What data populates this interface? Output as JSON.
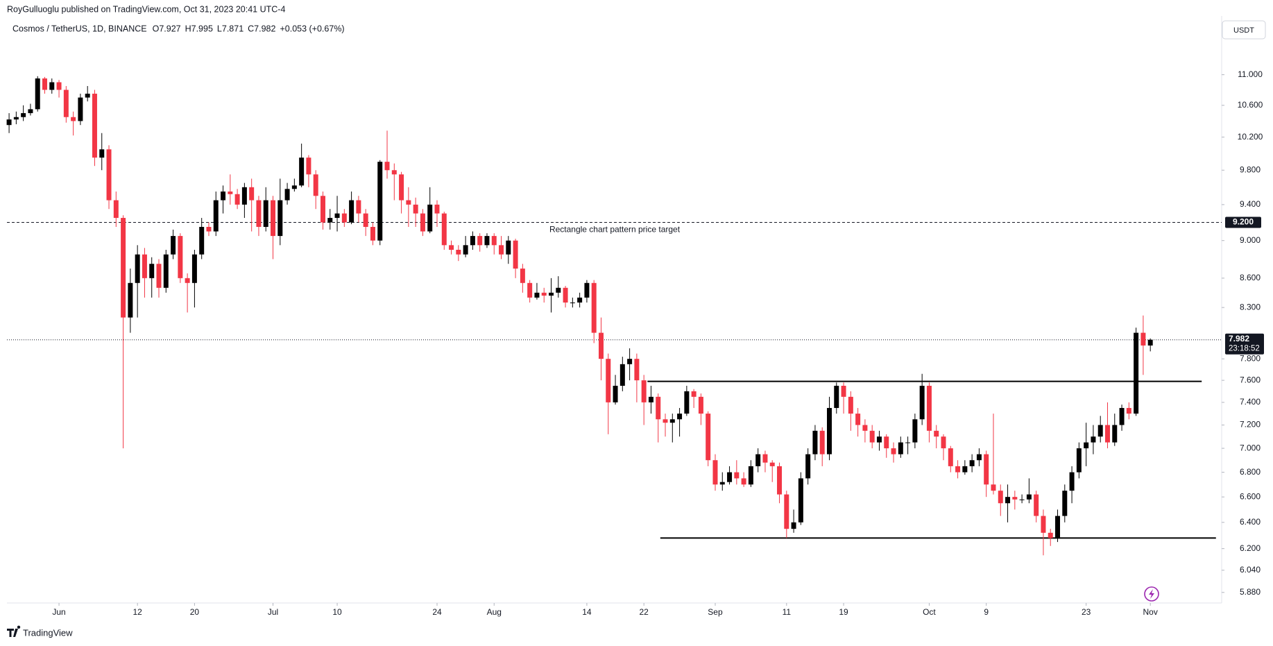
{
  "header": {
    "publisher": "RoyGulluoglu published on TradingView.com, Oct 31, 2023 20:41 UTC-4",
    "symbol": "Cosmos / TetherUS, 1D, BINANCE",
    "legend": [
      "O7.927",
      "H7.995",
      "L7.871",
      "C7.982",
      "+0.053 (+0.67%)"
    ],
    "currency": "USDT",
    "brand": "TradingView"
  },
  "chart_data": {
    "type": "candlestick",
    "log_scale": true,
    "grid": false,
    "up_color": "#000000",
    "down_color": "#f23645",
    "xlim": [
      -0.3,
      170
    ],
    "ylim": [
      5.82,
      11.81
    ],
    "xticks": [
      {
        "value": 7,
        "label": "Jun"
      },
      {
        "value": 18,
        "label": "12"
      },
      {
        "value": 26,
        "label": "20"
      },
      {
        "value": 37,
        "label": "Jul"
      },
      {
        "value": 46,
        "label": "10"
      },
      {
        "value": 60,
        "label": "24"
      },
      {
        "value": 68,
        "label": "Aug"
      },
      {
        "value": 81,
        "label": "14"
      },
      {
        "value": 89,
        "label": "22"
      },
      {
        "value": 99,
        "label": "Sep"
      },
      {
        "value": 109,
        "label": "11"
      },
      {
        "value": 117,
        "label": "19"
      },
      {
        "value": 129,
        "label": "Oct"
      },
      {
        "value": 137,
        "label": "9"
      },
      {
        "value": 151,
        "label": "23"
      },
      {
        "value": 160,
        "label": "Nov"
      }
    ],
    "yticks": [
      {
        "value": 11,
        "label": "11.000"
      },
      {
        "value": 10.6,
        "label": "10.600"
      },
      {
        "value": 10.2,
        "label": "10.200"
      },
      {
        "value": 9.8,
        "label": "9.800"
      },
      {
        "value": 9.4,
        "label": "9.400"
      },
      {
        "value": 9,
        "label": "9.000"
      },
      {
        "value": 8.6,
        "label": "8.600"
      },
      {
        "value": 8.3,
        "label": "8.300"
      },
      {
        "value": 7.8,
        "label": "7.800"
      },
      {
        "value": 7.6,
        "label": "7.600"
      },
      {
        "value": 7.4,
        "label": "7.400"
      },
      {
        "value": 7.2,
        "label": "7.200"
      },
      {
        "value": 7,
        "label": "7.000"
      },
      {
        "value": 6.8,
        "label": "6.800"
      },
      {
        "value": 6.6,
        "label": "6.600"
      },
      {
        "value": 6.4,
        "label": "6.400"
      },
      {
        "value": 6.2,
        "label": "6.200"
      },
      {
        "value": 6.04,
        "label": "6.040"
      },
      {
        "value": 5.88,
        "label": "5.880"
      }
    ],
    "open": [
      10.35,
      10.42,
      10.45,
      10.5,
      10.55,
      10.95,
      10.8,
      10.9,
      10.8,
      10.45,
      10.4,
      10.7,
      10.75,
      9.95,
      10.05,
      9.45,
      9.25,
      8.2,
      8.55,
      8.85,
      8.6,
      8.75,
      8.5,
      8.85,
      9.05,
      8.6,
      8.55,
      8.85,
      9.15,
      9.1,
      9.45,
      9.55,
      9.52,
      9.4,
      9.6,
      9.45,
      9.15,
      9.45,
      9.05,
      9.45,
      9.58,
      9.62,
      9.95,
      9.75,
      9.5,
      9.2,
      9.25,
      9.3,
      9.2,
      9.45,
      9.3,
      9.15,
      9.0,
      9.9,
      9.8,
      9.75,
      9.45,
      9.4,
      9.3,
      9.1,
      9.4,
      9.3,
      8.95,
      8.9,
      8.85,
      8.95,
      9.05,
      8.95,
      9.05,
      8.95,
      8.85,
      9.0,
      8.7,
      8.55,
      8.4,
      8.45,
      8.42,
      8.45,
      8.5,
      8.35,
      8.35,
      8.4,
      8.55,
      8.05,
      7.8,
      7.4,
      7.55,
      7.75,
      7.8,
      7.6,
      7.4,
      7.45,
      7.25,
      7.22,
      7.25,
      7.3,
      7.5,
      7.45,
      7.3,
      6.9,
      6.7,
      6.72,
      6.8,
      6.75,
      6.7,
      6.85,
      6.95,
      6.88,
      6.85,
      6.62,
      6.35,
      6.4,
      6.75,
      6.95,
      7.15,
      6.95,
      7.35,
      7.55,
      7.45,
      7.3,
      7.2,
      7.15,
      7.05,
      7.1,
      7.0,
      6.95,
      7.05,
      7.05,
      7.25,
      7.55,
      7.15,
      7.1,
      7.0,
      6.85,
      6.8,
      6.85,
      6.9,
      6.95,
      6.7,
      6.65,
      6.55,
      6.6,
      6.58,
      6.58,
      6.62,
      6.45,
      6.32,
      6.28,
      6.45,
      6.65,
      6.8,
      7.0,
      7.05,
      7.1,
      7.2,
      7.05,
      7.2,
      7.35,
      7.3,
      8.05,
      7.927
    ],
    "high": [
      10.5,
      10.52,
      10.6,
      10.62,
      10.98,
      10.97,
      10.95,
      10.93,
      10.85,
      10.52,
      10.75,
      10.85,
      10.8,
      10.25,
      10.1,
      9.55,
      9.28,
      8.7,
      8.95,
      8.92,
      8.82,
      8.8,
      8.9,
      9.12,
      9.08,
      8.65,
      8.9,
      9.25,
      9.2,
      9.55,
      9.62,
      9.75,
      9.58,
      9.65,
      9.7,
      9.5,
      9.6,
      9.5,
      9.7,
      9.65,
      9.7,
      10.12,
      9.98,
      9.8,
      9.55,
      9.35,
      9.5,
      9.35,
      9.55,
      9.5,
      9.35,
      9.2,
      9.92,
      10.28,
      9.88,
      9.78,
      9.6,
      9.48,
      9.35,
      9.6,
      9.45,
      9.32,
      9.0,
      8.95,
      9.05,
      9.1,
      9.08,
      9.08,
      9.08,
      9.05,
      9.05,
      9.02,
      8.75,
      8.58,
      8.55,
      8.5,
      8.6,
      8.62,
      8.52,
      8.4,
      8.45,
      8.58,
      8.58,
      8.2,
      7.85,
      7.65,
      7.82,
      7.9,
      7.85,
      7.65,
      7.55,
      7.48,
      7.3,
      7.3,
      7.35,
      7.55,
      7.52,
      7.48,
      7.32,
      6.95,
      6.8,
      6.85,
      6.9,
      6.8,
      6.9,
      7.0,
      6.98,
      6.9,
      6.88,
      6.65,
      6.5,
      6.8,
      7.0,
      7.2,
      7.18,
      7.45,
      7.58,
      7.58,
      7.5,
      7.35,
      7.25,
      7.2,
      7.15,
      7.12,
      7.05,
      7.1,
      7.1,
      7.3,
      7.66,
      7.58,
      7.2,
      7.12,
      7.02,
      6.9,
      6.9,
      6.95,
      7.0,
      6.98,
      7.3,
      6.7,
      6.7,
      6.65,
      6.62,
      6.75,
      6.65,
      6.5,
      6.35,
      6.5,
      6.7,
      6.85,
      7.05,
      7.22,
      7.2,
      7.28,
      7.4,
      7.3,
      7.38,
      7.4,
      8.1,
      8.22,
      7.995
    ],
    "low": [
      10.25,
      10.36,
      10.4,
      10.47,
      10.52,
      10.75,
      10.75,
      10.7,
      10.38,
      10.22,
      10.35,
      10.65,
      9.85,
      9.8,
      9.35,
      9.15,
      7.0,
      8.05,
      8.2,
      8.4,
      8.4,
      8.4,
      8.45,
      8.8,
      8.55,
      8.25,
      8.3,
      8.8,
      9.05,
      9.05,
      9.3,
      9.4,
      9.35,
      9.25,
      9.1,
      9.05,
      9.1,
      8.8,
      8.95,
      9.4,
      9.55,
      9.6,
      9.6,
      9.35,
      9.12,
      9.12,
      9.1,
      9.15,
      9.18,
      9.2,
      9.05,
      8.95,
      8.95,
      9.7,
      9.45,
      9.3,
      9.15,
      9.15,
      9.05,
      9.08,
      9.15,
      8.9,
      8.85,
      8.78,
      8.82,
      8.9,
      8.88,
      8.92,
      8.85,
      8.8,
      8.75,
      8.6,
      8.45,
      8.35,
      8.38,
      8.35,
      8.25,
      8.4,
      8.3,
      8.3,
      8.3,
      8.35,
      7.95,
      7.6,
      7.12,
      7.38,
      7.5,
      7.6,
      7.4,
      7.2,
      7.3,
      7.05,
      7.1,
      7.05,
      7.1,
      7.28,
      7.35,
      7.2,
      6.85,
      6.65,
      6.65,
      6.7,
      6.7,
      6.68,
      6.68,
      6.8,
      6.8,
      6.72,
      6.55,
      6.28,
      6.32,
      6.38,
      6.7,
      6.9,
      6.85,
      6.9,
      7.3,
      7.3,
      7.15,
      7.1,
      7.05,
      7.0,
      6.98,
      6.92,
      6.88,
      6.92,
      6.95,
      7.0,
      7.2,
      7.05,
      7.0,
      6.9,
      6.8,
      6.75,
      6.78,
      6.8,
      6.85,
      6.6,
      6.62,
      6.45,
      6.4,
      6.5,
      6.55,
      6.55,
      6.4,
      6.15,
      6.22,
      6.25,
      6.4,
      6.55,
      6.75,
      6.85,
      6.95,
      7.05,
      7.0,
      7.02,
      7.15,
      7.25,
      7.28,
      7.65,
      7.871
    ],
    "close": [
      10.42,
      10.45,
      10.5,
      10.55,
      10.95,
      10.8,
      10.9,
      10.8,
      10.45,
      10.4,
      10.7,
      10.75,
      9.95,
      10.05,
      9.45,
      9.25,
      8.2,
      8.55,
      8.85,
      8.6,
      8.75,
      8.5,
      8.85,
      9.05,
      8.6,
      8.55,
      8.85,
      9.15,
      9.1,
      9.45,
      9.55,
      9.52,
      9.4,
      9.6,
      9.45,
      9.15,
      9.45,
      9.05,
      9.45,
      9.58,
      9.62,
      9.95,
      9.75,
      9.5,
      9.2,
      9.25,
      9.3,
      9.2,
      9.45,
      9.3,
      9.15,
      9.0,
      9.9,
      9.8,
      9.75,
      9.45,
      9.4,
      9.3,
      9.1,
      9.4,
      9.3,
      8.95,
      8.9,
      8.85,
      8.95,
      9.05,
      8.95,
      9.05,
      8.95,
      8.85,
      9.0,
      8.7,
      8.55,
      8.4,
      8.45,
      8.42,
      8.45,
      8.5,
      8.35,
      8.35,
      8.4,
      8.55,
      8.05,
      7.8,
      7.4,
      7.55,
      7.75,
      7.8,
      7.6,
      7.4,
      7.45,
      7.25,
      7.22,
      7.25,
      7.3,
      7.5,
      7.45,
      7.3,
      6.9,
      6.7,
      6.72,
      6.8,
      6.75,
      6.7,
      6.85,
      6.95,
      6.88,
      6.85,
      6.62,
      6.35,
      6.4,
      6.75,
      6.95,
      7.15,
      6.95,
      7.35,
      7.55,
      7.45,
      7.3,
      7.2,
      7.15,
      7.05,
      7.1,
      7.0,
      6.95,
      7.05,
      7.05,
      7.25,
      7.55,
      7.15,
      7.1,
      7.0,
      6.85,
      6.8,
      6.85,
      6.9,
      6.95,
      6.7,
      6.65,
      6.55,
      6.6,
      6.58,
      6.58,
      6.62,
      6.45,
      6.32,
      6.28,
      6.45,
      6.65,
      6.8,
      7.0,
      7.05,
      7.1,
      7.2,
      7.05,
      7.2,
      7.35,
      7.3,
      8.05,
      7.927,
      7.982
    ],
    "price_target": {
      "value": 9.2,
      "label": "9.200",
      "annotation": "Rectangle chart pattern price target"
    },
    "last_price": {
      "value": 7.982,
      "label": "7.982",
      "countdown": "23:18:52"
    },
    "rectangle_lines": [
      {
        "value": 7.59,
        "start": 89.5,
        "end": 167.2
      },
      {
        "value": 6.28,
        "start": 91.3,
        "end": 169.2
      }
    ]
  }
}
